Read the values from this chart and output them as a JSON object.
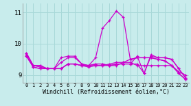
{
  "background_color": "#c8ecec",
  "grid_color": "#a8d8d8",
  "line_color": "#cc00cc",
  "xlim": [
    -0.5,
    23.5
  ],
  "ylim": [
    8.75,
    11.3
  ],
  "yticks": [
    9,
    10,
    11
  ],
  "xticks": [
    0,
    1,
    2,
    3,
    4,
    5,
    6,
    7,
    8,
    9,
    10,
    11,
    12,
    13,
    14,
    15,
    16,
    17,
    18,
    19,
    20,
    21,
    22,
    23
  ],
  "xlabel": "Windchill (Refroidissement éolien,°C)",
  "series": [
    [
      9.65,
      9.3,
      9.25,
      9.2,
      9.2,
      9.4,
      9.55,
      9.55,
      9.35,
      9.3,
      9.55,
      10.5,
      10.75,
      11.05,
      10.85,
      9.5,
      9.55,
      9.55,
      9.55,
      9.5,
      9.45,
      9.3,
      9.05,
      8.85
    ],
    [
      9.7,
      9.3,
      9.3,
      9.2,
      9.2,
      9.55,
      9.6,
      9.6,
      9.35,
      9.3,
      9.3,
      9.3,
      9.35,
      9.4,
      9.4,
      9.5,
      9.55,
      9.55,
      9.55,
      9.5,
      9.45,
      9.3,
      9.05,
      8.85
    ],
    [
      9.7,
      9.3,
      9.3,
      9.2,
      9.2,
      9.2,
      9.35,
      9.35,
      9.3,
      9.25,
      9.3,
      9.3,
      9.3,
      9.3,
      9.4,
      9.4,
      9.3,
      9.3,
      9.3,
      9.3,
      9.3,
      9.3,
      9.1,
      9.0
    ],
    [
      9.6,
      9.25,
      9.2,
      9.2,
      9.2,
      9.2,
      9.35,
      9.35,
      9.3,
      9.3,
      9.35,
      9.35,
      9.3,
      9.35,
      9.35,
      9.35,
      9.6,
      9.05,
      9.65,
      9.55,
      9.55,
      9.5,
      9.2,
      8.9
    ],
    [
      9.6,
      9.25,
      9.2,
      9.2,
      9.2,
      9.2,
      9.35,
      9.35,
      9.3,
      9.3,
      9.35,
      9.35,
      9.3,
      9.35,
      9.35,
      9.35,
      9.35,
      9.05,
      9.6,
      9.55,
      9.55,
      9.5,
      9.2,
      8.9
    ]
  ],
  "linewidth": 0.9,
  "marker_size": 3.5
}
